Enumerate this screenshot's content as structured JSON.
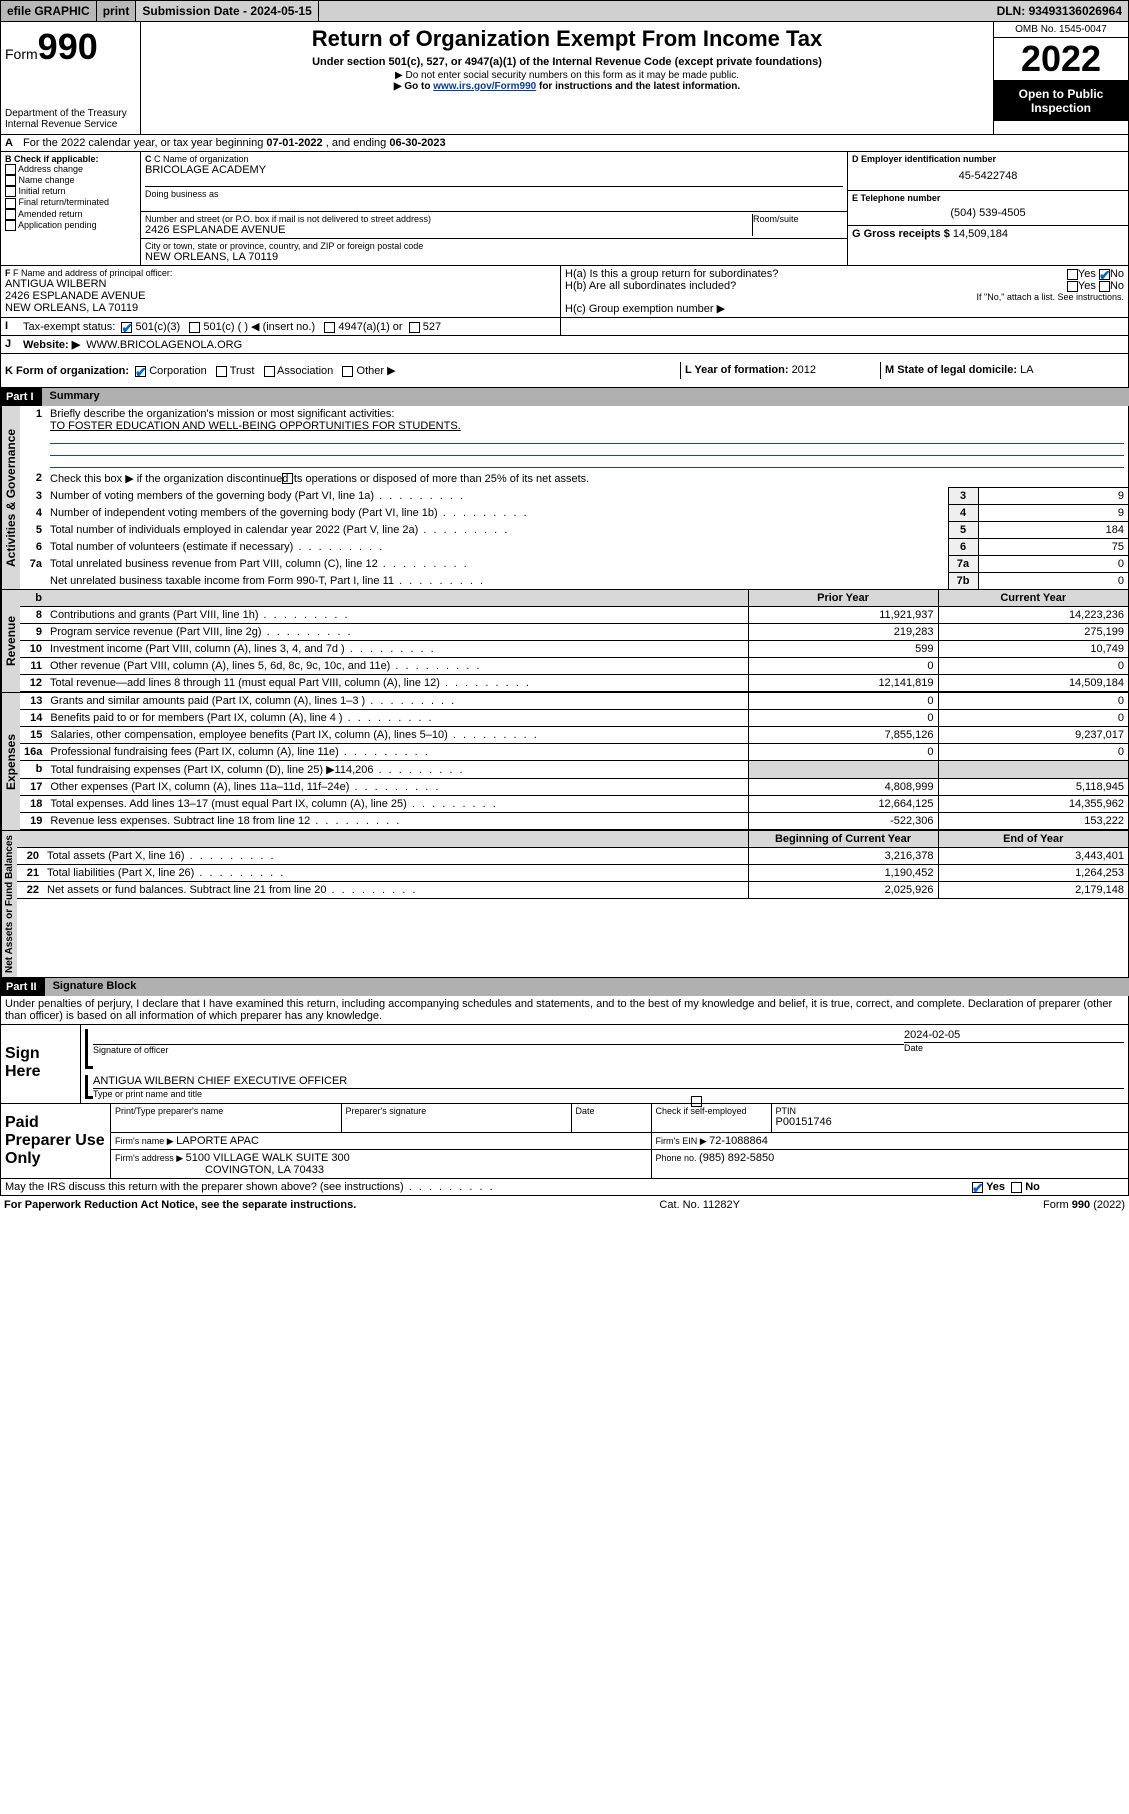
{
  "topbar": {
    "efile": "efile GRAPHIC",
    "print": "print",
    "submission_label": "Submission Date - ",
    "submission_date": "2024-05-15",
    "dln_label": "DLN: ",
    "dln": "93493136026964"
  },
  "header": {
    "form_word": "Form",
    "form_num": "990",
    "dept": "Department of the Treasury",
    "irs": "Internal Revenue Service",
    "title": "Return of Organization Exempt From Income Tax",
    "sub1": "Under section 501(c), 527, or 4947(a)(1) of the Internal Revenue Code (except private foundations)",
    "sub2": "▶ Do not enter social security numbers on this form as it may be made public.",
    "sub3_pre": "▶ Go to ",
    "sub3_link": "www.irs.gov/Form990",
    "sub3_post": " for instructions and the latest information.",
    "omb": "OMB No. 1545-0047",
    "year": "2022",
    "open": "Open to Public Inspection"
  },
  "lineA": {
    "text_pre": "For the 2022 calendar year, or tax year beginning ",
    "begin": "07-01-2022",
    "mid": " , and ending ",
    "end": "06-30-2023"
  },
  "boxB": {
    "label": "B Check if applicable:",
    "items": [
      "Address change",
      "Name change",
      "Initial return",
      "Final return/terminated",
      "Amended return",
      "Application pending"
    ]
  },
  "boxC": {
    "label": "C Name of organization",
    "name": "BRICOLAGE ACADEMY",
    "dba_label": "Doing business as",
    "street_label": "Number and street (or P.O. box if mail is not delivered to street address)",
    "room_label": "Room/suite",
    "street": "2426 ESPLANADE AVENUE",
    "city_label": "City or town, state or province, country, and ZIP or foreign postal code",
    "city": "NEW ORLEANS, LA  70119"
  },
  "boxD": {
    "label": "D Employer identification number",
    "val": "45-5422748"
  },
  "boxE": {
    "label": "E Telephone number",
    "val": "(504) 539-4505"
  },
  "boxG": {
    "label": "G Gross receipts $ ",
    "val": "14,509,184"
  },
  "boxF": {
    "label": "F Name and address of principal officer:",
    "name": "ANTIGUA WILBERN",
    "addr1": "2426 ESPLANADE AVENUE",
    "addr2": "NEW ORLEANS, LA  70119"
  },
  "boxH": {
    "ha": "H(a)  Is this a group return for subordinates?",
    "hb": "H(b)  Are all subordinates included?",
    "hb_note": "If \"No,\" attach a list. See instructions.",
    "hc": "H(c)  Group exemption number ▶",
    "yes": "Yes",
    "no": "No"
  },
  "lineI": {
    "label": "Tax-exempt status:",
    "opts": [
      "501(c)(3)",
      "501(c) (  ) ◀ (insert no.)",
      "4947(a)(1) or",
      "527"
    ]
  },
  "lineJ": {
    "label": "Website: ▶",
    "val": "WWW.BRICOLAGENOLA.ORG"
  },
  "lineK": {
    "label": "K Form of organization:",
    "opts": [
      "Corporation",
      "Trust",
      "Association",
      "Other ▶"
    ]
  },
  "lineL": {
    "label": "L Year of formation: ",
    "val": "2012"
  },
  "lineM": {
    "label": "M State of legal domicile: ",
    "val": "LA"
  },
  "part1": {
    "num": "Part I",
    "title": "Summary",
    "side_gov": "Activities & Governance",
    "side_rev": "Revenue",
    "side_exp": "Expenses",
    "side_net": "Net Assets or Fund Balances",
    "q1": "Briefly describe the organization's mission or most significant activities:",
    "q1_ans": "TO FOSTER EDUCATION AND WELL-BEING OPPORTUNITIES FOR STUDENTS.",
    "q2": "Check this box ▶        if the organization discontinued its operations or disposed of more than 25% of its net assets.",
    "lines_gov": [
      {
        "n": "3",
        "t": "Number of voting members of the governing body (Part VI, line 1a)",
        "box": "3",
        "v": "9"
      },
      {
        "n": "4",
        "t": "Number of independent voting members of the governing body (Part VI, line 1b)",
        "box": "4",
        "v": "9"
      },
      {
        "n": "5",
        "t": "Total number of individuals employed in calendar year 2022 (Part V, line 2a)",
        "box": "5",
        "v": "184"
      },
      {
        "n": "6",
        "t": "Total number of volunteers (estimate if necessary)",
        "box": "6",
        "v": "75"
      },
      {
        "n": "7a",
        "t": "Total unrelated business revenue from Part VIII, column (C), line 12",
        "box": "7a",
        "v": "0"
      },
      {
        "n": "",
        "t": "Net unrelated business taxable income from Form 990-T, Part I, line 11",
        "box": "7b",
        "v": "0"
      }
    ],
    "col_prior": "Prior Year",
    "col_curr": "Current Year",
    "lines_rev": [
      {
        "n": "8",
        "t": "Contributions and grants (Part VIII, line 1h)",
        "p": "11,921,937",
        "c": "14,223,236"
      },
      {
        "n": "9",
        "t": "Program service revenue (Part VIII, line 2g)",
        "p": "219,283",
        "c": "275,199"
      },
      {
        "n": "10",
        "t": "Investment income (Part VIII, column (A), lines 3, 4, and 7d )",
        "p": "599",
        "c": "10,749"
      },
      {
        "n": "11",
        "t": "Other revenue (Part VIII, column (A), lines 5, 6d, 8c, 9c, 10c, and 11e)",
        "p": "0",
        "c": "0"
      },
      {
        "n": "12",
        "t": "Total revenue—add lines 8 through 11 (must equal Part VIII, column (A), line 12)",
        "p": "12,141,819",
        "c": "14,509,184"
      }
    ],
    "lines_exp": [
      {
        "n": "13",
        "t": "Grants and similar amounts paid (Part IX, column (A), lines 1–3 )",
        "p": "0",
        "c": "0"
      },
      {
        "n": "14",
        "t": "Benefits paid to or for members (Part IX, column (A), line 4 )",
        "p": "0",
        "c": "0"
      },
      {
        "n": "15",
        "t": "Salaries, other compensation, employee benefits (Part IX, column (A), lines 5–10)",
        "p": "7,855,126",
        "c": "9,237,017"
      },
      {
        "n": "16a",
        "t": "Professional fundraising fees (Part IX, column (A), line 11e)",
        "p": "0",
        "c": "0"
      },
      {
        "n": "b",
        "t": "Total fundraising expenses (Part IX, column (D), line 25) ▶114,206",
        "p": "",
        "c": "",
        "shade": true
      },
      {
        "n": "17",
        "t": "Other expenses (Part IX, column (A), lines 11a–11d, 11f–24e)",
        "p": "4,808,999",
        "c": "5,118,945"
      },
      {
        "n": "18",
        "t": "Total expenses. Add lines 13–17 (must equal Part IX, column (A), line 25)",
        "p": "12,664,125",
        "c": "14,355,962"
      },
      {
        "n": "19",
        "t": "Revenue less expenses. Subtract line 18 from line 12",
        "p": "-522,306",
        "c": "153,222"
      }
    ],
    "col_begin": "Beginning of Current Year",
    "col_end": "End of Year",
    "lines_net": [
      {
        "n": "20",
        "t": "Total assets (Part X, line 16)",
        "p": "3,216,378",
        "c": "3,443,401"
      },
      {
        "n": "21",
        "t": "Total liabilities (Part X, line 26)",
        "p": "1,190,452",
        "c": "1,264,253"
      },
      {
        "n": "22",
        "t": "Net assets or fund balances. Subtract line 21 from line 20",
        "p": "2,025,926",
        "c": "2,179,148"
      }
    ]
  },
  "part2": {
    "num": "Part II",
    "title": "Signature Block",
    "decl": "Under penalties of perjury, I declare that I have examined this return, including accompanying schedules and statements, and to the best of my knowledge and belief, it is true, correct, and complete. Declaration of preparer (other than officer) is based on all information of which preparer has any knowledge.",
    "sign_here": "Sign Here",
    "sig_officer": "Signature of officer",
    "date_label": "Date",
    "sig_date": "2024-02-05",
    "officer_name": "ANTIGUA WILBERN  CHIEF EXECUTIVE OFFICER",
    "type_name": "Type or print name and title",
    "paid": "Paid Preparer Use Only",
    "prep_name_label": "Print/Type preparer's name",
    "prep_sig_label": "Preparer's signature",
    "check_self": "Check         if self-employed",
    "ptin_label": "PTIN",
    "ptin": "P00151746",
    "firm_name_label": "Firm's name    ▶ ",
    "firm_name": "LAPORTE APAC",
    "firm_ein_label": "Firm's EIN ▶ ",
    "firm_ein": "72-1088864",
    "firm_addr_label": "Firm's address ▶ ",
    "firm_addr": "5100 VILLAGE WALK SUITE 300",
    "firm_city": "COVINGTON, LA  70433",
    "firm_phone_label": "Phone no. ",
    "firm_phone": "(985) 892-5850",
    "may_irs": "May the IRS discuss this return with the preparer shown above? (see instructions)",
    "paperwork": "For Paperwork Reduction Act Notice, see the separate instructions.",
    "catno": "Cat. No. 11282Y",
    "formfoot": "Form 990 (2022)"
  }
}
